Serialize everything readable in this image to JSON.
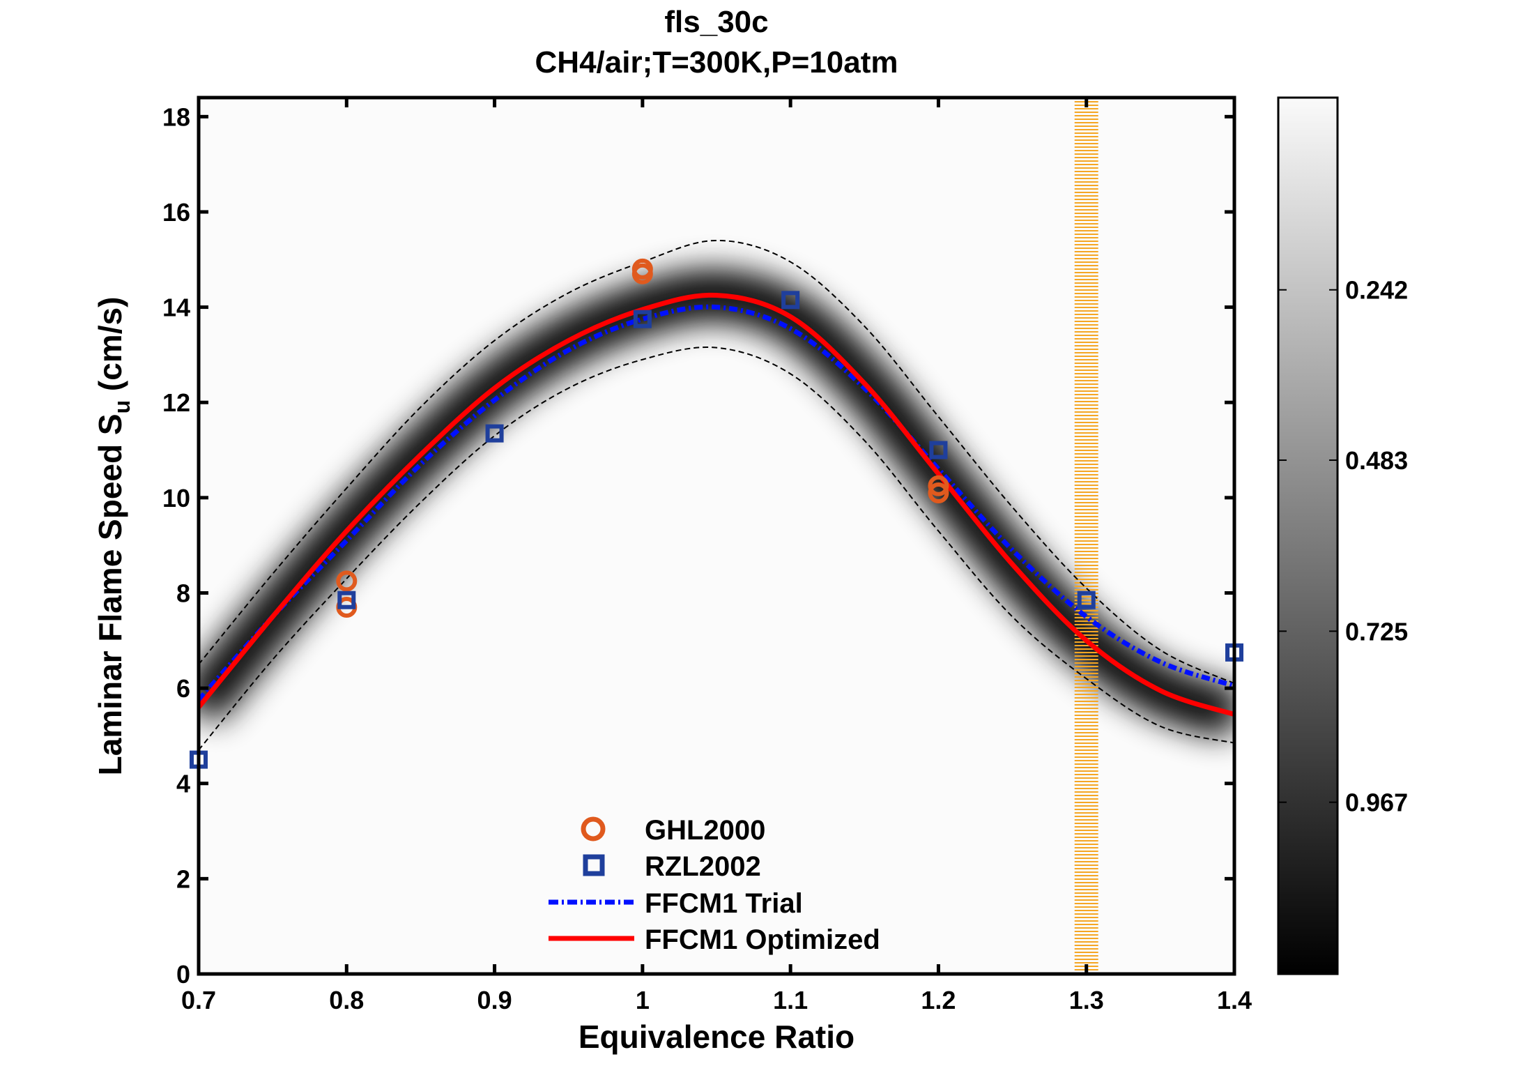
{
  "chart_data": {
    "type": "line",
    "title": "fls_30c",
    "subtitle": "CH4/air;T=300K,P=10atm",
    "xlabel": "Equivalence Ratio",
    "ylabel": {
      "main": "Laminar Flame Speed S",
      "sub": "u",
      "unit": " (cm/s)"
    },
    "xlim": [
      0.7,
      1.4
    ],
    "ylim": [
      0,
      18.4
    ],
    "xticks": [
      0.7,
      0.8,
      0.9,
      1,
      1.1,
      1.2,
      1.3,
      1.4
    ],
    "xtick_labels": [
      "0.7",
      "0.8",
      "0.9",
      "1",
      "1.1",
      "1.2",
      "1.3",
      "1.4"
    ],
    "yticks": [
      0,
      2,
      4,
      6,
      8,
      10,
      12,
      14,
      16,
      18
    ],
    "ytick_labels": [
      "0",
      "2",
      "4",
      "6",
      "8",
      "10",
      "12",
      "14",
      "16",
      "18"
    ],
    "grid": false,
    "legend_position": "bottom-center",
    "highlight_band": {
      "x": 1.3,
      "half_width": 0.008,
      "color": "#f5a623"
    },
    "series": [
      {
        "name": "GHL2000",
        "kind": "scatter",
        "marker": "circle",
        "color": "#e05a1e",
        "x": [
          0.8,
          0.8,
          1.0,
          1.0,
          1.2,
          1.2
        ],
        "y": [
          8.25,
          7.7,
          14.8,
          14.7,
          10.25,
          10.1
        ]
      },
      {
        "name": "RZL2002",
        "kind": "scatter",
        "marker": "square",
        "color": "#1f3f9c",
        "x": [
          0.7,
          0.8,
          0.9,
          1.0,
          1.1,
          1.2,
          1.3,
          1.4
        ],
        "y": [
          4.5,
          7.85,
          11.35,
          13.75,
          14.15,
          11.0,
          7.85,
          6.75
        ]
      },
      {
        "name": "FFCM1 Trial",
        "kind": "line",
        "style": "dash-dot",
        "color": "#0010ff",
        "x": [
          0.7,
          0.75,
          0.8,
          0.85,
          0.9,
          0.95,
          1.0,
          1.05,
          1.1,
          1.15,
          1.2,
          1.25,
          1.3,
          1.35,
          1.4
        ],
        "y": [
          5.75,
          7.5,
          9.1,
          10.7,
          12.05,
          13.1,
          13.75,
          14.0,
          13.55,
          12.3,
          10.6,
          8.9,
          7.5,
          6.55,
          6.05
        ]
      },
      {
        "name": "FFCM1 Optimized",
        "kind": "line",
        "style": "solid",
        "color": "#ff0000",
        "x": [
          0.7,
          0.75,
          0.8,
          0.85,
          0.9,
          0.95,
          1.0,
          1.05,
          1.1,
          1.15,
          1.2,
          1.25,
          1.3,
          1.35,
          1.4
        ],
        "y": [
          5.6,
          7.5,
          9.3,
          10.9,
          12.3,
          13.3,
          13.95,
          14.25,
          13.8,
          12.4,
          10.5,
          8.6,
          7.0,
          5.95,
          5.45
        ]
      }
    ],
    "uncertainty_bounds": {
      "style": "dashed",
      "color": "#000000",
      "x": [
        0.7,
        0.75,
        0.8,
        0.85,
        0.9,
        0.95,
        1.0,
        1.05,
        1.1,
        1.15,
        1.2,
        1.25,
        1.3,
        1.35,
        1.4
      ],
      "upper": [
        6.5,
        8.4,
        10.2,
        11.9,
        13.3,
        14.3,
        14.95,
        15.4,
        14.95,
        13.6,
        11.7,
        9.8,
        8.1,
        6.8,
        6.1
      ],
      "lower": [
        4.7,
        6.6,
        8.3,
        9.9,
        11.3,
        12.3,
        12.9,
        13.15,
        12.6,
        11.2,
        9.3,
        7.5,
        6.2,
        5.2,
        4.85
      ]
    },
    "colorbar": {
      "range": [
        -0.03,
        1.21
      ],
      "reversed": true,
      "colormap": "gray",
      "ticks": [
        0.242,
        0.483,
        0.725,
        0.967
      ],
      "tick_labels": [
        "0.242",
        "0.483",
        "0.725",
        "0.967"
      ]
    }
  }
}
